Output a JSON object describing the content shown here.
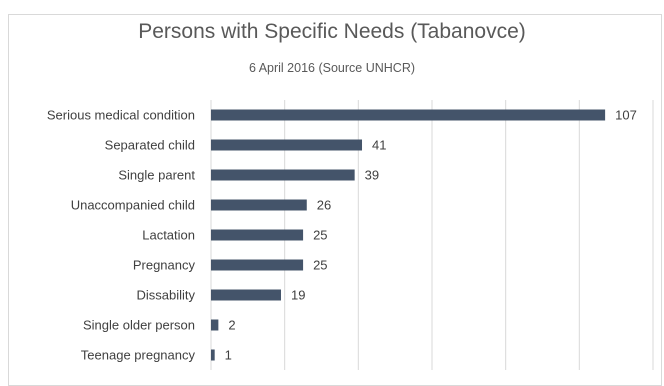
{
  "chart_data": {
    "type": "bar",
    "orientation": "horizontal",
    "title": "Persons with Specific Needs (Tabanovce)",
    "subtitle": "6 April 2016 (Source UNHCR)",
    "categories": [
      "Serious medical condition",
      "Separated child",
      "Single parent",
      "Unaccompanied child",
      "Lactation",
      "Pregnancy",
      "Dissability",
      "Single older person",
      "Teenage pregnancy"
    ],
    "values": [
      107,
      41,
      39,
      26,
      25,
      25,
      19,
      2,
      1
    ],
    "xlim": [
      0,
      120
    ],
    "grid": true,
    "data_labels": true,
    "bar_color": "#44546a",
    "grid_color": "#d9d9d9"
  }
}
